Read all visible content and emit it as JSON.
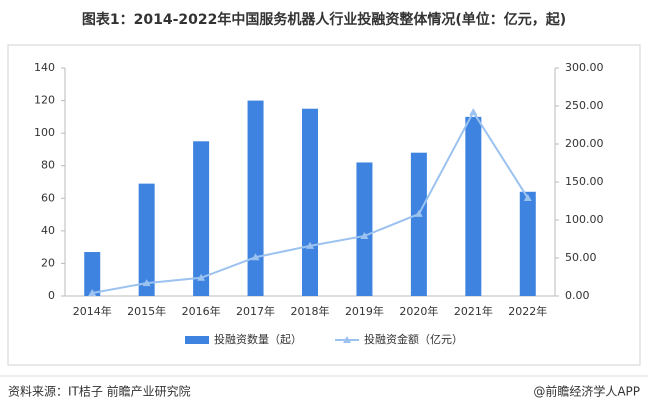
{
  "chart_data": {
    "type": "bar-line",
    "title": "图表1：2014-2022年中国服务机器人行业投融资整体情况(单位：亿元，起)",
    "categories": [
      "2014年",
      "2015年",
      "2016年",
      "2017年",
      "2018年",
      "2019年",
      "2020年",
      "2021年",
      "2022年"
    ],
    "series": [
      {
        "name": "投融资数量（起）",
        "type": "bar",
        "color": "#3f83e0",
        "values": [
          27,
          69,
          95,
          120,
          115,
          82,
          88,
          110,
          64
        ]
      },
      {
        "name": "投融资金额（亿元）",
        "type": "line",
        "axis": "y2",
        "color": "#9cc2f0",
        "values": [
          4,
          17,
          24,
          51,
          66,
          79,
          108,
          242,
          129
        ]
      }
    ],
    "ylim": [
      0,
      140
    ],
    "yticks": [
      0,
      20,
      40,
      60,
      80,
      100,
      120,
      140
    ],
    "y2lim": [
      0,
      300
    ],
    "y2ticks": [
      {
        "value": 0,
        "label": "0.00"
      },
      {
        "value": 50,
        "label": "50.00"
      },
      {
        "value": 100,
        "label": "100.00"
      },
      {
        "value": 150,
        "label": "150.00"
      },
      {
        "value": 200,
        "label": "200.00"
      },
      {
        "value": 250,
        "label": "250.00"
      },
      {
        "value": 300,
        "label": "300.00"
      }
    ],
    "legend": "bottom",
    "source": "资料来源：IT桔子 前瞻产业研究院",
    "credit": "@前瞻经济学人APP"
  }
}
